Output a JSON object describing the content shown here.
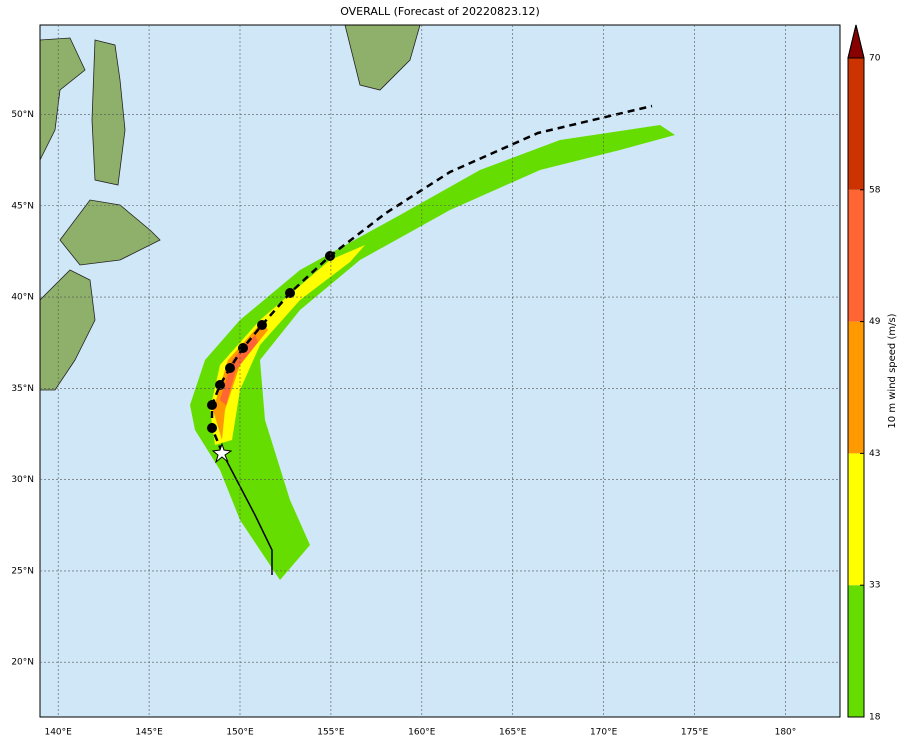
{
  "map": {
    "title": "OVERALL (Forecast of 20220823.12)",
    "xlim": [
      139,
      183
    ],
    "ylim": [
      17,
      54.9
    ],
    "xticks": [
      {
        "value": 140,
        "label": "140°E"
      },
      {
        "value": 145,
        "label": "145°E"
      },
      {
        "value": 150,
        "label": "150°E"
      },
      {
        "value": 155,
        "label": "155°E"
      },
      {
        "value": 160,
        "label": "160°E"
      },
      {
        "value": 165,
        "label": "165°E"
      },
      {
        "value": 170,
        "label": "170°E"
      },
      {
        "value": 175,
        "label": "175°E"
      },
      {
        "value": 180,
        "label": "180°"
      }
    ],
    "yticks": [
      {
        "value": 20,
        "label": "20°N"
      },
      {
        "value": 25,
        "label": "25°N"
      },
      {
        "value": 30,
        "label": "30°N"
      },
      {
        "value": 35,
        "label": "35°N"
      },
      {
        "value": 40,
        "label": "40°N"
      },
      {
        "value": 45,
        "label": "45°N"
      },
      {
        "value": 50,
        "label": "50°N"
      }
    ],
    "grid": true
  },
  "colorbar": {
    "label": "10 m wind speed (m/s)",
    "ticks": [
      18,
      33,
      43,
      49,
      58,
      70
    ],
    "colors": [
      "#66dd00",
      "#ffff00",
      "#ff9900",
      "#ff6633",
      "#cc3300"
    ],
    "extend_color": "#880000"
  }
}
